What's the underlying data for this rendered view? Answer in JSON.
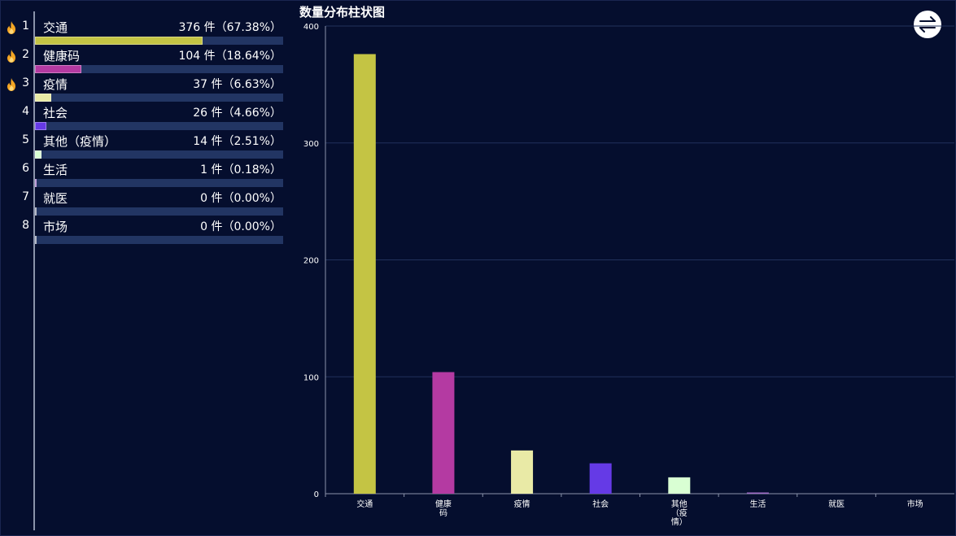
{
  "ranking": {
    "items": [
      {
        "rank": "1",
        "name": "交通",
        "value": "376 件（67.38%）",
        "share": 67.38,
        "color": "#c4c444",
        "hot": true
      },
      {
        "rank": "2",
        "name": "健康码",
        "value": "104 件（18.64%）",
        "share": 18.64,
        "color": "#b43aa2",
        "hot": true
      },
      {
        "rank": "3",
        "name": "疫情",
        "value": "37 件（6.63%）",
        "share": 6.63,
        "color": "#e9eaa6",
        "hot": true
      },
      {
        "rank": "4",
        "name": "社会",
        "value": "26 件（4.66%）",
        "share": 4.66,
        "color": "#653ae6",
        "hot": false
      },
      {
        "rank": "5",
        "name": "其他（疫情）",
        "value": "14 件（2.51%）",
        "share": 2.51,
        "color": "#d9ffd3",
        "hot": false
      },
      {
        "rank": "6",
        "name": "生活",
        "value": "1 件（0.18%）",
        "share": 0.18,
        "color": "#9f6cc6",
        "hot": false
      },
      {
        "rank": "7",
        "name": "就医",
        "value": "0 件（0.00%）",
        "share": 0.0,
        "color": "#8a93aa",
        "hot": false
      },
      {
        "rank": "8",
        "name": "市场",
        "value": "0 件（0.00%）",
        "share": 0.0,
        "color": "#8a93aa",
        "hot": false
      }
    ]
  },
  "switch_icon": "swap-arrows-icon",
  "chart_data": {
    "type": "bar",
    "title": "数量分布柱状图",
    "categories": [
      "交通",
      "健康码",
      "疫情",
      "社会",
      "其他（疫情）",
      "生活",
      "就医",
      "市场"
    ],
    "tick_labels": [
      [
        "交通"
      ],
      [
        "健康",
        "码"
      ],
      [
        "疫情"
      ],
      [
        "社会"
      ],
      [
        "其他",
        "（疫",
        "情）"
      ],
      [
        "生活"
      ],
      [
        "就医"
      ],
      [
        "市场"
      ]
    ],
    "values": [
      376,
      104,
      37,
      26,
      14,
      1,
      0,
      0
    ],
    "colors": [
      "#c4c444",
      "#b43aa2",
      "#e9eaa6",
      "#653ae6",
      "#d9ffd3",
      "#9f6cc6",
      "#8a93aa",
      "#8a93aa"
    ],
    "ylim": [
      0,
      400
    ],
    "yticks": [
      0,
      100,
      200,
      300,
      400
    ],
    "grid": true,
    "legend": "none",
    "xlabel": "",
    "ylabel": ""
  }
}
